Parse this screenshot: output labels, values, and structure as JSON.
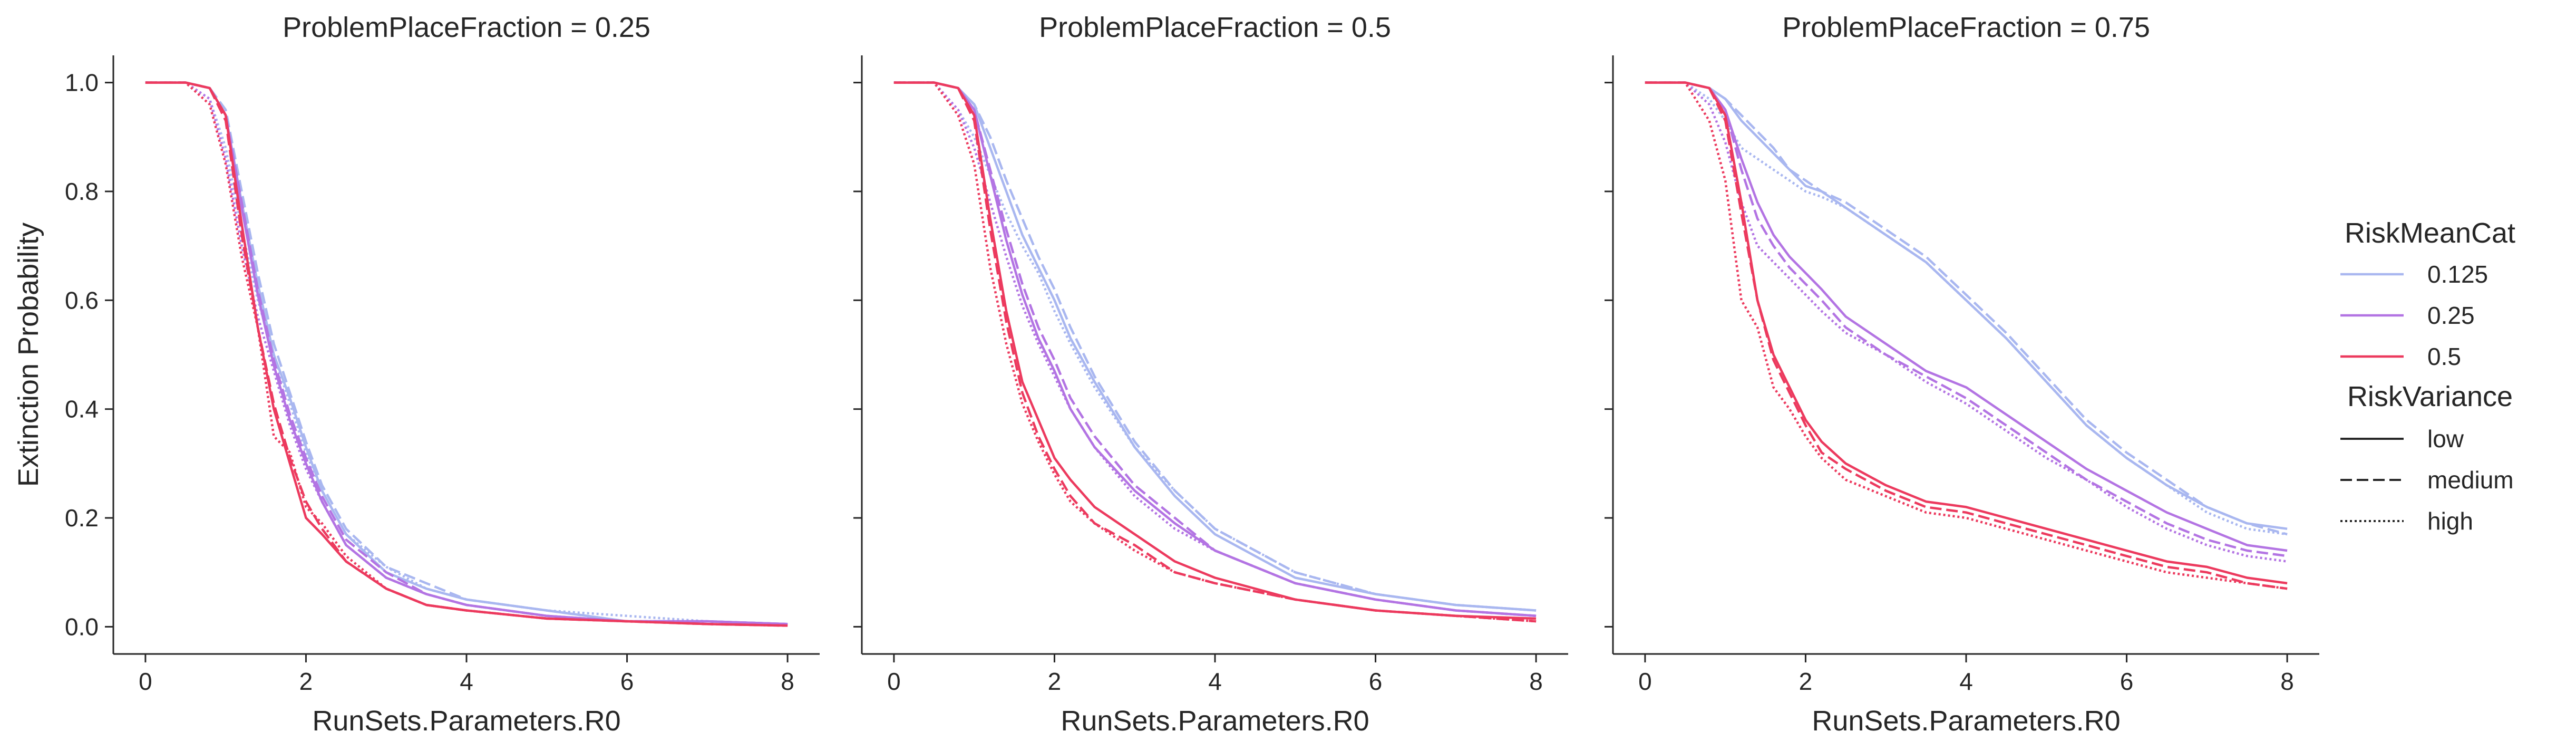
{
  "chart_data": [
    {
      "type": "line",
      "title": "ProblemPlaceFraction = 0.25",
      "xlabel": "RunSets.Parameters.R0",
      "ylabel": "Extinction Probability",
      "xlim": [
        -0.4,
        8.4
      ],
      "ylim": [
        -0.05,
        1.05
      ],
      "xticks": [
        0,
        2,
        4,
        6,
        8
      ],
      "yticks": [
        0.0,
        0.2,
        0.4,
        0.6,
        0.8,
        1.0
      ],
      "x": [
        0,
        0.5,
        0.8,
        1.0,
        1.2,
        1.4,
        1.6,
        1.8,
        2.0,
        2.2,
        2.5,
        3.0,
        3.5,
        4.0,
        5.0,
        6.0,
        7.0,
        8.0
      ],
      "series": [
        {
          "RiskMeanCat": "0.125",
          "RiskVariance": "low",
          "values": [
            1.0,
            1.0,
            0.99,
            0.94,
            0.78,
            0.63,
            0.5,
            0.42,
            0.33,
            0.25,
            0.17,
            0.1,
            0.07,
            0.05,
            0.03,
            0.01,
            0.01,
            0.005
          ]
        },
        {
          "RiskMeanCat": "0.125",
          "RiskVariance": "medium",
          "values": [
            1.0,
            1.0,
            0.99,
            0.95,
            0.8,
            0.65,
            0.52,
            0.43,
            0.34,
            0.26,
            0.18,
            0.11,
            0.08,
            0.05,
            0.03,
            0.01,
            0.01,
            0.005
          ]
        },
        {
          "RiskMeanCat": "0.125",
          "RiskVariance": "high",
          "values": [
            1.0,
            1.0,
            0.97,
            0.88,
            0.73,
            0.6,
            0.5,
            0.41,
            0.32,
            0.25,
            0.17,
            0.11,
            0.07,
            0.05,
            0.03,
            0.02,
            0.01,
            0.005
          ]
        },
        {
          "RiskMeanCat": "0.25",
          "RiskVariance": "low",
          "values": [
            1.0,
            1.0,
            0.99,
            0.94,
            0.77,
            0.61,
            0.48,
            0.38,
            0.3,
            0.23,
            0.15,
            0.09,
            0.06,
            0.04,
            0.02,
            0.01,
            0.01,
            0.005
          ]
        },
        {
          "RiskMeanCat": "0.25",
          "RiskVariance": "medium",
          "values": [
            1.0,
            1.0,
            0.99,
            0.94,
            0.78,
            0.62,
            0.49,
            0.39,
            0.31,
            0.24,
            0.16,
            0.1,
            0.06,
            0.04,
            0.02,
            0.01,
            0.01,
            0.005
          ]
        },
        {
          "RiskMeanCat": "0.25",
          "RiskVariance": "high",
          "values": [
            1.0,
            1.0,
            0.97,
            0.86,
            0.7,
            0.57,
            0.47,
            0.37,
            0.29,
            0.23,
            0.15,
            0.09,
            0.06,
            0.04,
            0.02,
            0.01,
            0.01,
            0.005
          ]
        },
        {
          "RiskMeanCat": "0.5",
          "RiskVariance": "low",
          "values": [
            1.0,
            1.0,
            0.99,
            0.94,
            0.74,
            0.55,
            0.4,
            0.3,
            0.2,
            0.17,
            0.12,
            0.07,
            0.04,
            0.03,
            0.015,
            0.01,
            0.005,
            0.002
          ]
        },
        {
          "RiskMeanCat": "0.5",
          "RiskVariance": "medium",
          "values": [
            1.0,
            1.0,
            0.99,
            0.93,
            0.72,
            0.55,
            0.41,
            0.31,
            0.23,
            0.18,
            0.12,
            0.07,
            0.04,
            0.03,
            0.015,
            0.01,
            0.005,
            0.002
          ]
        },
        {
          "RiskMeanCat": "0.5",
          "RiskVariance": "high",
          "values": [
            1.0,
            1.0,
            0.96,
            0.85,
            0.68,
            0.55,
            0.35,
            0.32,
            0.22,
            0.19,
            0.13,
            0.07,
            0.04,
            0.03,
            0.015,
            0.01,
            0.005,
            0.002
          ]
        }
      ]
    },
    {
      "type": "line",
      "title": "ProblemPlaceFraction = 0.5",
      "xlabel": "RunSets.Parameters.R0",
      "ylabel": "",
      "xlim": [
        -0.4,
        8.4
      ],
      "ylim": [
        -0.05,
        1.05
      ],
      "xticks": [
        0,
        2,
        4,
        6,
        8
      ],
      "yticks": [
        0.0,
        0.2,
        0.4,
        0.6,
        0.8,
        1.0
      ],
      "x": [
        0,
        0.5,
        0.8,
        1.0,
        1.2,
        1.4,
        1.6,
        1.8,
        2.0,
        2.2,
        2.5,
        3.0,
        3.5,
        4.0,
        5.0,
        6.0,
        7.0,
        8.0
      ],
      "series": [
        {
          "RiskMeanCat": "0.125",
          "RiskVariance": "low",
          "values": [
            1.0,
            1.0,
            0.99,
            0.96,
            0.88,
            0.8,
            0.72,
            0.66,
            0.6,
            0.53,
            0.45,
            0.33,
            0.24,
            0.17,
            0.09,
            0.06,
            0.04,
            0.03
          ]
        },
        {
          "RiskMeanCat": "0.125",
          "RiskVariance": "medium",
          "values": [
            1.0,
            1.0,
            0.99,
            0.96,
            0.9,
            0.82,
            0.75,
            0.68,
            0.62,
            0.55,
            0.46,
            0.34,
            0.25,
            0.18,
            0.1,
            0.06,
            0.04,
            0.03
          ]
        },
        {
          "RiskMeanCat": "0.125",
          "RiskVariance": "high",
          "values": [
            1.0,
            1.0,
            0.95,
            0.9,
            0.83,
            0.76,
            0.7,
            0.65,
            0.58,
            0.52,
            0.44,
            0.33,
            0.25,
            0.18,
            0.1,
            0.06,
            0.04,
            0.03
          ]
        },
        {
          "RiskMeanCat": "0.25",
          "RiskVariance": "low",
          "values": [
            1.0,
            1.0,
            0.99,
            0.95,
            0.83,
            0.71,
            0.61,
            0.53,
            0.47,
            0.4,
            0.33,
            0.25,
            0.19,
            0.14,
            0.08,
            0.05,
            0.03,
            0.02
          ]
        },
        {
          "RiskMeanCat": "0.25",
          "RiskVariance": "medium",
          "values": [
            1.0,
            1.0,
            0.99,
            0.95,
            0.84,
            0.73,
            0.63,
            0.55,
            0.49,
            0.42,
            0.35,
            0.26,
            0.2,
            0.14,
            0.08,
            0.05,
            0.03,
            0.02
          ]
        },
        {
          "RiskMeanCat": "0.25",
          "RiskVariance": "high",
          "values": [
            1.0,
            1.0,
            0.95,
            0.88,
            0.78,
            0.68,
            0.59,
            0.52,
            0.46,
            0.4,
            0.33,
            0.24,
            0.18,
            0.14,
            0.08,
            0.05,
            0.03,
            0.02
          ]
        },
        {
          "RiskMeanCat": "0.5",
          "RiskVariance": "low",
          "values": [
            1.0,
            1.0,
            0.99,
            0.94,
            0.75,
            0.58,
            0.45,
            0.38,
            0.31,
            0.27,
            0.22,
            0.17,
            0.12,
            0.09,
            0.05,
            0.03,
            0.02,
            0.015
          ]
        },
        {
          "RiskMeanCat": "0.5",
          "RiskVariance": "medium",
          "values": [
            1.0,
            1.0,
            0.99,
            0.93,
            0.73,
            0.56,
            0.43,
            0.35,
            0.29,
            0.24,
            0.19,
            0.15,
            0.1,
            0.08,
            0.05,
            0.03,
            0.02,
            0.01
          ]
        },
        {
          "RiskMeanCat": "0.5",
          "RiskVariance": "high",
          "values": [
            1.0,
            1.0,
            0.94,
            0.85,
            0.66,
            0.52,
            0.41,
            0.34,
            0.28,
            0.23,
            0.19,
            0.14,
            0.1,
            0.08,
            0.05,
            0.03,
            0.02,
            0.01
          ]
        }
      ]
    },
    {
      "type": "line",
      "title": "ProblemPlaceFraction = 0.75",
      "xlabel": "RunSets.Parameters.R0",
      "ylabel": "",
      "xlim": [
        -0.4,
        8.4
      ],
      "ylim": [
        -0.05,
        1.05
      ],
      "xticks": [
        0,
        2,
        4,
        6,
        8
      ],
      "yticks": [
        0.0,
        0.2,
        0.4,
        0.6,
        0.8,
        1.0
      ],
      "x": [
        0,
        0.5,
        0.8,
        1.0,
        1.2,
        1.4,
        1.6,
        1.8,
        2.0,
        2.2,
        2.5,
        3.0,
        3.5,
        4.0,
        4.5,
        5.0,
        5.5,
        6.0,
        6.5,
        7.0,
        7.5,
        8.0
      ],
      "series": [
        {
          "RiskMeanCat": "0.125",
          "RiskVariance": "low",
          "values": [
            1.0,
            1.0,
            0.99,
            0.97,
            0.93,
            0.9,
            0.87,
            0.84,
            0.81,
            0.8,
            0.77,
            0.72,
            0.67,
            0.6,
            0.53,
            0.45,
            0.37,
            0.31,
            0.26,
            0.22,
            0.19,
            0.18
          ]
        },
        {
          "RiskMeanCat": "0.125",
          "RiskVariance": "medium",
          "values": [
            1.0,
            1.0,
            0.99,
            0.97,
            0.94,
            0.91,
            0.88,
            0.84,
            0.82,
            0.8,
            0.78,
            0.73,
            0.68,
            0.61,
            0.54,
            0.46,
            0.38,
            0.32,
            0.27,
            0.22,
            0.19,
            0.17
          ]
        },
        {
          "RiskMeanCat": "0.125",
          "RiskVariance": "high",
          "values": [
            1.0,
            1.0,
            0.97,
            0.93,
            0.88,
            0.86,
            0.84,
            0.82,
            0.8,
            0.79,
            0.77,
            0.72,
            0.67,
            0.6,
            0.53,
            0.45,
            0.37,
            0.31,
            0.26,
            0.21,
            0.18,
            0.17
          ]
        },
        {
          "RiskMeanCat": "0.25",
          "RiskVariance": "low",
          "values": [
            1.0,
            1.0,
            0.99,
            0.95,
            0.86,
            0.78,
            0.72,
            0.68,
            0.65,
            0.62,
            0.57,
            0.52,
            0.47,
            0.44,
            0.39,
            0.34,
            0.29,
            0.25,
            0.21,
            0.18,
            0.15,
            0.14
          ]
        },
        {
          "RiskMeanCat": "0.25",
          "RiskVariance": "medium",
          "values": [
            1.0,
            1.0,
            0.99,
            0.95,
            0.84,
            0.75,
            0.7,
            0.66,
            0.63,
            0.6,
            0.55,
            0.5,
            0.46,
            0.42,
            0.37,
            0.32,
            0.27,
            0.23,
            0.19,
            0.16,
            0.14,
            0.13
          ]
        },
        {
          "RiskMeanCat": "0.25",
          "RiskVariance": "high",
          "values": [
            1.0,
            1.0,
            0.96,
            0.89,
            0.78,
            0.7,
            0.67,
            0.64,
            0.61,
            0.58,
            0.54,
            0.5,
            0.45,
            0.41,
            0.36,
            0.31,
            0.27,
            0.22,
            0.18,
            0.15,
            0.13,
            0.12
          ]
        },
        {
          "RiskMeanCat": "0.5",
          "RiskVariance": "low",
          "values": [
            1.0,
            1.0,
            0.99,
            0.94,
            0.78,
            0.6,
            0.5,
            0.44,
            0.38,
            0.34,
            0.3,
            0.26,
            0.23,
            0.22,
            0.2,
            0.18,
            0.16,
            0.14,
            0.12,
            0.11,
            0.09,
            0.08
          ]
        },
        {
          "RiskMeanCat": "0.5",
          "RiskVariance": "medium",
          "values": [
            1.0,
            1.0,
            0.99,
            0.93,
            0.76,
            0.6,
            0.49,
            0.43,
            0.37,
            0.32,
            0.29,
            0.25,
            0.22,
            0.21,
            0.19,
            0.17,
            0.15,
            0.13,
            0.11,
            0.1,
            0.08,
            0.07
          ]
        },
        {
          "RiskMeanCat": "0.5",
          "RiskVariance": "high",
          "values": [
            1.0,
            1.0,
            0.93,
            0.82,
            0.6,
            0.55,
            0.44,
            0.4,
            0.35,
            0.31,
            0.27,
            0.24,
            0.21,
            0.2,
            0.18,
            0.16,
            0.14,
            0.12,
            0.1,
            0.09,
            0.08,
            0.07
          ]
        }
      ]
    }
  ],
  "legend": {
    "hue_title": "RiskMeanCat",
    "hue_entries": [
      {
        "label": "0.125",
        "color": "#a9b7f0"
      },
      {
        "label": "0.25",
        "color": "#b374e3"
      },
      {
        "label": "0.5",
        "color": "#ec3a5e"
      }
    ],
    "style_title": "RiskVariance",
    "style_entries": [
      {
        "label": "low",
        "dash": "solid"
      },
      {
        "label": "medium",
        "dash": "dashed"
      },
      {
        "label": "high",
        "dash": "dotted"
      }
    ],
    "placement": "right"
  }
}
